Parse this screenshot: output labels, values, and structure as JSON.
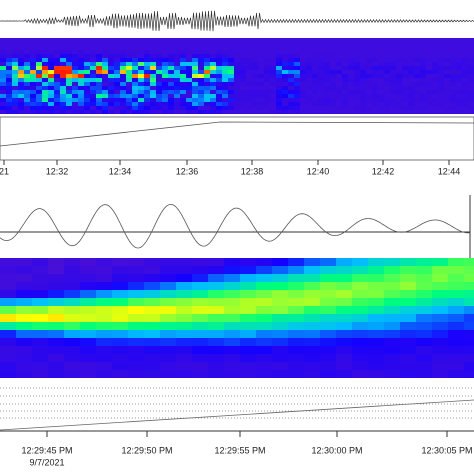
{
  "upper_panel": {
    "time_labels": [
      "21",
      "12:32",
      "12:34",
      "12:36",
      "12:38",
      "12:40",
      "12:42",
      "12:44"
    ]
  },
  "lower_panel": {
    "time_labels": [
      "12:29:45 PM",
      "12:29:50 PM",
      "12:29:55 PM",
      "12:30:00 PM",
      "12:30:05 PM"
    ],
    "date": "9/7/2021"
  }
}
